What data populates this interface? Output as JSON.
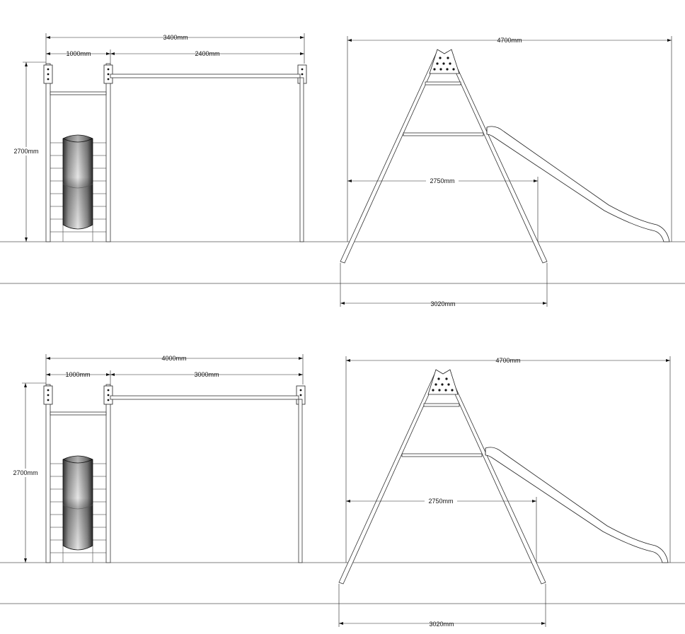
{
  "colors": {
    "line": "#222222",
    "ground": "#555555",
    "slide_dark": "#1e1e1e",
    "slide_light": "#d9d9d9"
  },
  "top": {
    "front": {
      "width_total": "3400mm",
      "width_tower": "1000mm",
      "width_bar": "2400mm",
      "height": "2700mm"
    },
    "side": {
      "width_total": "4700mm",
      "width_inner": "2750mm",
      "width_base": "3020mm"
    }
  },
  "bottom": {
    "front": {
      "width_total": "4000mm",
      "width_tower": "1000mm",
      "width_bar": "3000mm",
      "height": "2700mm"
    },
    "side": {
      "width_total": "4700mm",
      "width_inner": "2750mm",
      "width_base": "3020mm"
    }
  }
}
